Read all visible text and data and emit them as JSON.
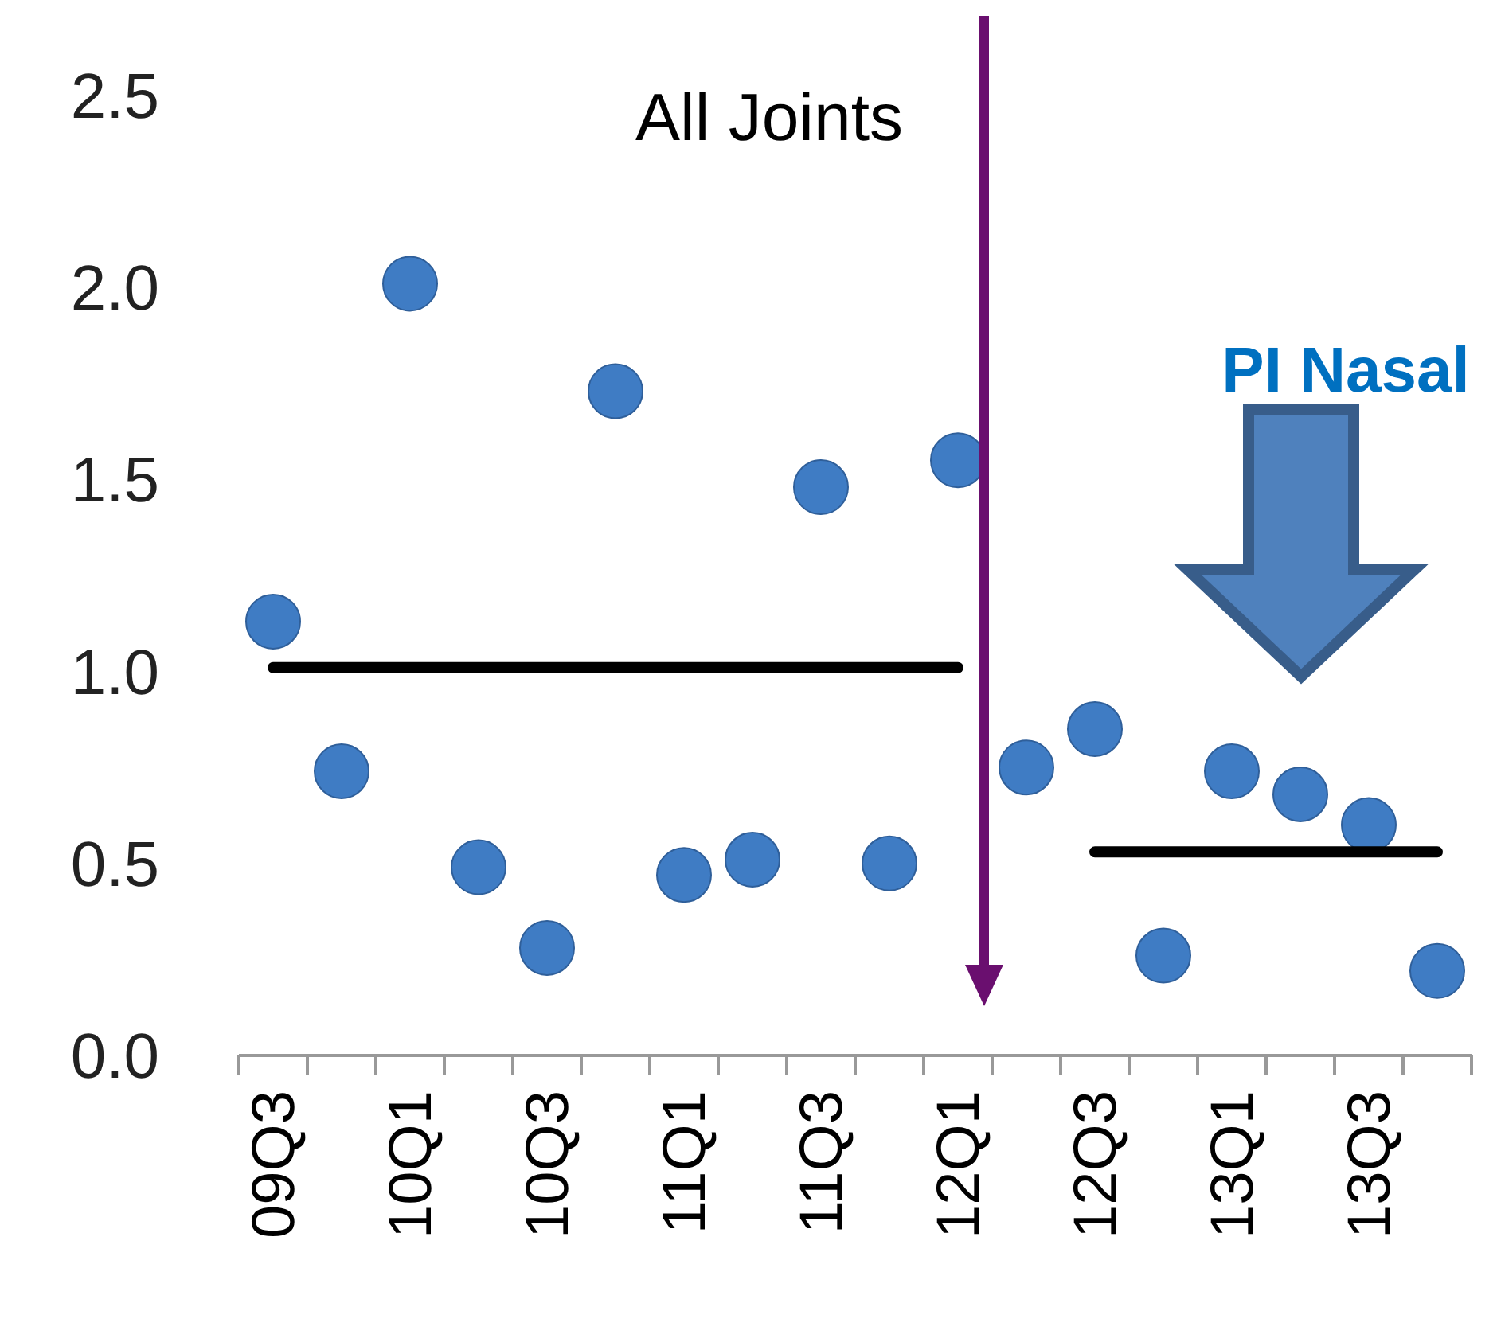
{
  "chart_data": {
    "type": "scatter",
    "categories": [
      "09Q3",
      null,
      "10Q1",
      null,
      "10Q3",
      null,
      "11Q1",
      null,
      "11Q3",
      null,
      "12Q1",
      null,
      "12Q3",
      null,
      "13Q1",
      null,
      "13Q3",
      null
    ],
    "series": [
      {
        "color": "#3f7cc4",
        "marker": "circle",
        "values": [
          1.13,
          0.74,
          2.01,
          0.49,
          0.28,
          1.73,
          0.47,
          0.51,
          1.48,
          0.5,
          1.55,
          0.75,
          0.85,
          0.26,
          0.74,
          0.68,
          0.6,
          0.22
        ]
      },
      {
        "type": "line",
        "color": "#000000",
        "marker": "none",
        "line_style": "solid",
        "values": [
          1.01,
          1.01,
          1.01,
          1.01,
          1.01,
          1.01,
          1.01,
          1.01,
          1.01,
          1.01,
          1.01,
          null,
          null,
          null,
          null,
          null,
          null,
          null
        ]
      },
      {
        "type": "line",
        "color": "#000000",
        "marker": "none",
        "line_style": "solid",
        "values": [
          null,
          null,
          null,
          null,
          null,
          null,
          null,
          null,
          null,
          null,
          null,
          null,
          0.53,
          0.53,
          0.53,
          0.53,
          0.53,
          0.53
        ]
      }
    ],
    "ylim": [
      0,
      2.5
    ],
    "yticks": [
      {
        "value": 0,
        "label": "0.0"
      },
      {
        "value": 0.5,
        "label": "0.5"
      },
      {
        "value": 1,
        "label": "1.0"
      },
      {
        "value": 1.5,
        "label": "1.5"
      },
      {
        "value": 2,
        "label": "2.0"
      },
      {
        "value": 2.5,
        "label": "2.5"
      }
    ],
    "grid": false,
    "annotations": [
      "All Joints",
      "PI Nasal"
    ]
  }
}
